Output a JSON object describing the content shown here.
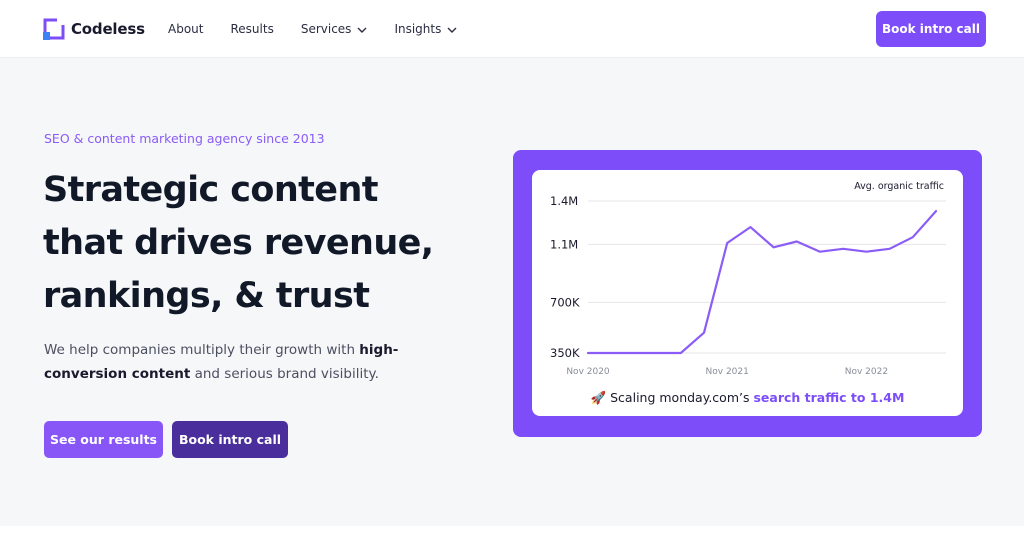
{
  "brand": {
    "name": "Codeless",
    "colors": {
      "primary": "#7d4dfa",
      "dark": "#4a2e9c",
      "accent_text": "#8a5cf6"
    }
  },
  "nav": {
    "items": [
      {
        "label": "About",
        "has_dropdown": false
      },
      {
        "label": "Results",
        "has_dropdown": false
      },
      {
        "label": "Services",
        "has_dropdown": true
      },
      {
        "label": "Insights",
        "has_dropdown": true
      }
    ],
    "cta": "Book intro call"
  },
  "hero": {
    "eyebrow": "SEO & content marketing agency since 2013",
    "headline_lines": [
      "Strategic content",
      "that drives revenue,",
      "rankings, & trust"
    ],
    "sub_part1": "We help companies multiply their growth with ",
    "sub_bold": "high-conversion content",
    "sub_part2": " and serious brand visibility.",
    "btn_primary": "See our results",
    "btn_secondary": "Book intro call"
  },
  "chart_caption": {
    "emoji": "🚀",
    "text": "Scaling monday.com’s ",
    "highlight": "search traffic to 1.4M"
  },
  "chart_data": {
    "type": "line",
    "series": [
      {
        "name": "Avg. organic traffic",
        "values": [
          350000,
          350000,
          350000,
          350000,
          350000,
          490000,
          1110000,
          1220000,
          1080000,
          1120000,
          1050000,
          1070000,
          1050000,
          1070000,
          1150000,
          1330000
        ]
      }
    ],
    "x": [
      0,
      2,
      4,
      6,
      8,
      10,
      12,
      14,
      16,
      18,
      20,
      22,
      24,
      26,
      28,
      30
    ],
    "x_ticks": [
      {
        "x": 0,
        "label": "Nov 2020"
      },
      {
        "x": 12,
        "label": "Nov 2021"
      },
      {
        "x": 24,
        "label": "Nov 2022"
      }
    ],
    "y_ticks": [
      {
        "y": 350000,
        "label": "350K"
      },
      {
        "y": 700000,
        "label": "700K"
      },
      {
        "y": 1100000,
        "label": "1.1M"
      },
      {
        "y": 1400000,
        "label": "1.4M"
      }
    ],
    "xlim": [
      0,
      30
    ],
    "ylim": [
      350000,
      1400000
    ],
    "grid": true,
    "legend": "top-right",
    "line_color": "#8b5cf6"
  }
}
